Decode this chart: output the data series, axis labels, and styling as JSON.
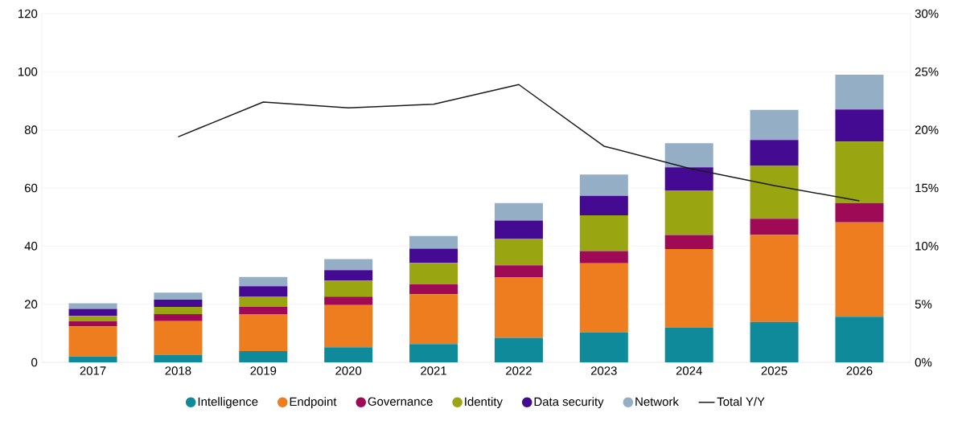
{
  "chart_data": {
    "type": "bar",
    "stacked": true,
    "categories": [
      "2017",
      "2018",
      "2019",
      "2020",
      "2021",
      "2022",
      "2023",
      "2024",
      "2025",
      "2026"
    ],
    "series": [
      {
        "name": "Intelligence",
        "color": "#0e8a9a",
        "values": [
          2.0,
          2.6,
          3.9,
          5.2,
          6.3,
          8.4,
          10.3,
          12.0,
          13.9,
          15.7
        ]
      },
      {
        "name": "Endpoint",
        "color": "#ee7d1f",
        "values": [
          10.4,
          11.6,
          12.7,
          14.5,
          17.1,
          20.8,
          23.8,
          27.0,
          29.9,
          32.5
        ]
      },
      {
        "name": "Governance",
        "color": "#9e0a55",
        "values": [
          1.7,
          2.4,
          2.5,
          2.9,
          3.4,
          4.2,
          4.2,
          4.8,
          5.6,
          6.6
        ]
      },
      {
        "name": "Identity",
        "color": "#9aa512",
        "values": [
          1.9,
          2.5,
          3.6,
          5.5,
          7.4,
          9.2,
          12.3,
          15.4,
          18.2,
          21.2
        ]
      },
      {
        "name": "Data security",
        "color": "#450a92",
        "values": [
          2.4,
          2.5,
          3.5,
          3.6,
          4.9,
          6.2,
          6.7,
          7.9,
          8.9,
          11.0
        ]
      },
      {
        "name": "Network",
        "color": "#94aec6",
        "values": [
          1.9,
          2.4,
          3.2,
          3.8,
          4.4,
          6.0,
          7.3,
          8.3,
          10.4,
          12.0
        ]
      },
      {
        "name": "Total Y/Y",
        "type": "line",
        "axis": "y2",
        "color": "#1a1a1a",
        "values": [
          null,
          19.4,
          22.4,
          21.9,
          22.2,
          23.9,
          18.6,
          16.7,
          15.2,
          13.9
        ]
      }
    ],
    "ylim": [
      0,
      120
    ],
    "yticks": [
      0,
      20,
      40,
      60,
      80,
      100,
      120
    ],
    "y2lim": [
      0,
      30
    ],
    "y2ticks": [
      {
        "value": 0,
        "label": "0%"
      },
      {
        "value": 5,
        "label": "5%"
      },
      {
        "value": 10,
        "label": "10%"
      },
      {
        "value": 15,
        "label": "15%"
      },
      {
        "value": 20,
        "label": "20%"
      },
      {
        "value": 25,
        "label": "25%"
      },
      {
        "value": 30,
        "label": "30%"
      }
    ],
    "grid": "y",
    "legend": "bottom"
  }
}
